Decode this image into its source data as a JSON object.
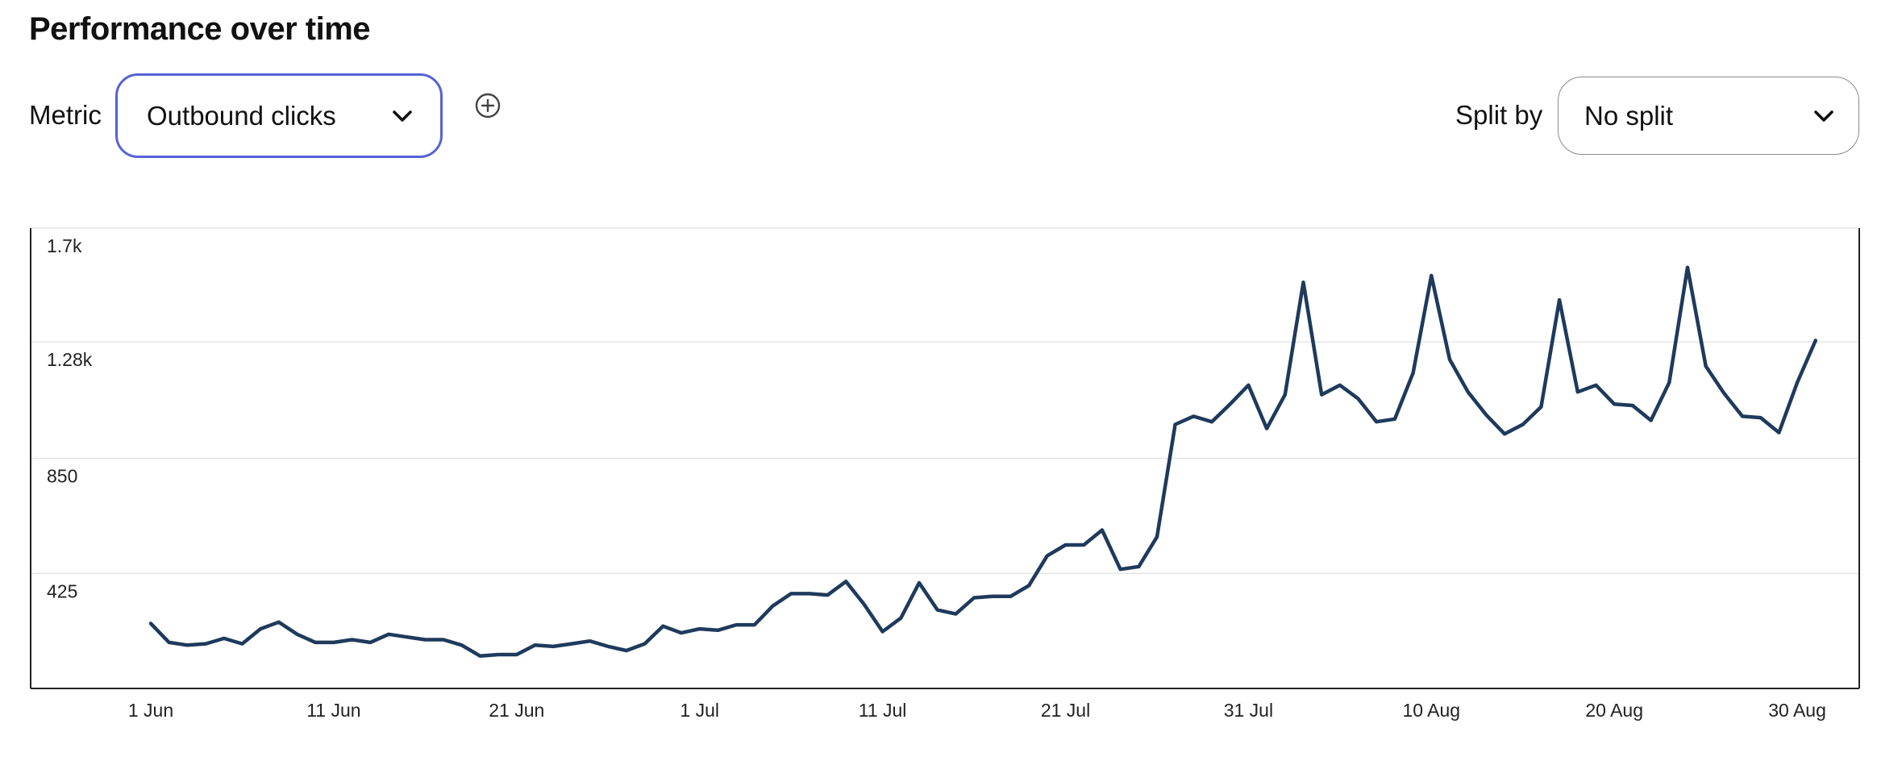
{
  "header": {
    "title": "Performance over time"
  },
  "controls": {
    "metric_label": "Metric",
    "metric_value": "Outbound clicks",
    "split_label": "Split by",
    "split_value": "No split",
    "add_icon": "plus-circle-icon",
    "dropdown_icon": "chevron-down-icon"
  },
  "colors": {
    "line": "#1e3a5c",
    "focus_border": "#5563d6",
    "grid": "#e6e6e6",
    "axis": "#222222"
  },
  "chart_data": {
    "type": "line",
    "title": "",
    "xlabel": "",
    "ylabel": "",
    "ylim": [
      0,
      1700
    ],
    "yticks": [
      425,
      850,
      1280,
      1700
    ],
    "ytick_labels": [
      "425",
      "850",
      "1.28k",
      "1.7k"
    ],
    "xticks": [
      "2024-06-01",
      "2024-06-11",
      "2024-06-21",
      "2024-07-01",
      "2024-07-11",
      "2024-07-21",
      "2024-07-31",
      "2024-08-10",
      "2024-08-20",
      "2024-08-30"
    ],
    "xtick_labels": [
      "1 Jun",
      "11 Jun",
      "21 Jun",
      "1 Jul",
      "11 Jul",
      "21 Jul",
      "31 Jul",
      "10 Aug",
      "20 Aug",
      "30 Aug"
    ],
    "grid": true,
    "legend": "none",
    "series": [
      {
        "name": "",
        "x": [
          "2024-06-01",
          "2024-06-02",
          "2024-06-03",
          "2024-06-04",
          "2024-06-05",
          "2024-06-06",
          "2024-06-07",
          "2024-06-08",
          "2024-06-09",
          "2024-06-10",
          "2024-06-11",
          "2024-06-12",
          "2024-06-13",
          "2024-06-14",
          "2024-06-15",
          "2024-06-16",
          "2024-06-17",
          "2024-06-18",
          "2024-06-19",
          "2024-06-20",
          "2024-06-21",
          "2024-06-22",
          "2024-06-23",
          "2024-06-24",
          "2024-06-25",
          "2024-06-26",
          "2024-06-27",
          "2024-06-28",
          "2024-06-29",
          "2024-06-30",
          "2024-07-01",
          "2024-07-02",
          "2024-07-03",
          "2024-07-04",
          "2024-07-05",
          "2024-07-06",
          "2024-07-07",
          "2024-07-08",
          "2024-07-09",
          "2024-07-10",
          "2024-07-11",
          "2024-07-12",
          "2024-07-13",
          "2024-07-14",
          "2024-07-15",
          "2024-07-16",
          "2024-07-17",
          "2024-07-18",
          "2024-07-19",
          "2024-07-20",
          "2024-07-21",
          "2024-07-22",
          "2024-07-23",
          "2024-07-24",
          "2024-07-25",
          "2024-07-26",
          "2024-07-27",
          "2024-07-28",
          "2024-07-29",
          "2024-07-30",
          "2024-07-31",
          "2024-08-01",
          "2024-08-02",
          "2024-08-03",
          "2024-08-04",
          "2024-08-05",
          "2024-08-06",
          "2024-08-07",
          "2024-08-08",
          "2024-08-09",
          "2024-08-10",
          "2024-08-11",
          "2024-08-12",
          "2024-08-13",
          "2024-08-14",
          "2024-08-15",
          "2024-08-16",
          "2024-08-17",
          "2024-08-18",
          "2024-08-19",
          "2024-08-20",
          "2024-08-21",
          "2024-08-22",
          "2024-08-23",
          "2024-08-24",
          "2024-08-25",
          "2024-08-26",
          "2024-08-27",
          "2024-08-28",
          "2024-08-29",
          "2024-08-30",
          "2024-08-31"
        ],
        "values": [
          240,
          170,
          160,
          165,
          185,
          165,
          220,
          245,
          200,
          170,
          170,
          180,
          170,
          200,
          190,
          180,
          180,
          160,
          120,
          125,
          125,
          160,
          155,
          165,
          175,
          155,
          140,
          165,
          230,
          205,
          220,
          215,
          235,
          235,
          305,
          350,
          350,
          345,
          395,
          310,
          210,
          260,
          390,
          290,
          275,
          335,
          340,
          340,
          380,
          490,
          530,
          530,
          585,
          440,
          450,
          560,
          975,
          1005,
          985,
          1050,
          1120,
          960,
          1085,
          1500,
          1085,
          1120,
          1070,
          985,
          995,
          1165,
          1525,
          1215,
          1095,
          1010,
          940,
          975,
          1040,
          1435,
          1095,
          1120,
          1050,
          1045,
          990,
          1130,
          1555,
          1190,
          1090,
          1005,
          1000,
          945,
          1130,
          1285
        ]
      }
    ]
  }
}
